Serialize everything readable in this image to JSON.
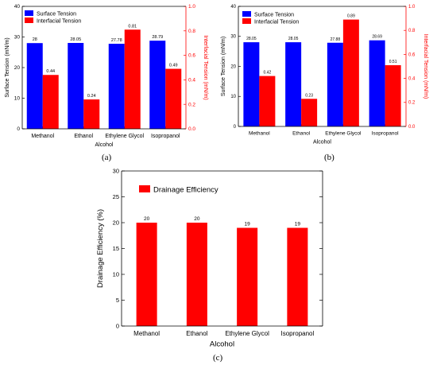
{
  "panels": [
    "(a)",
    "(b)",
    "(c)"
  ],
  "chart_data": [
    {
      "type": "bar",
      "categories": [
        "Methanol",
        "Ethanol",
        "Ethylene Glycol",
        "Isopropanol"
      ],
      "xlabel": "Alcohol",
      "ylabel": "Surface Tension (mN/m)",
      "y2label": "Interfacial Tension (mN/m)",
      "ylim": [
        0,
        40
      ],
      "y2lim": [
        0,
        1.0
      ],
      "yticks": [
        "0",
        "10",
        "20",
        "30",
        "40"
      ],
      "y2ticks": [
        "0.0",
        "0.2",
        "0.4",
        "0.6",
        "0.8",
        "1.0"
      ],
      "legend_position": "top-left",
      "series": [
        {
          "name": "Surface Tension",
          "axis": "left",
          "color": "#0000ff",
          "values": [
            28,
            28.05,
            27.78,
            28.79
          ],
          "labels": [
            "28",
            "28.05",
            "27.78",
            "28.79"
          ]
        },
        {
          "name": "Interfacial Tension",
          "axis": "right",
          "color": "#ff0000",
          "values": [
            0.44,
            0.24,
            0.81,
            0.49
          ],
          "labels": [
            "0.44",
            "0.24",
            "0.81",
            "0.49"
          ]
        }
      ]
    },
    {
      "type": "bar",
      "categories": [
        "Methanol",
        "Ethanol",
        "Ethylene Glycol",
        "Isopropanol"
      ],
      "xlabel": "Alcohol",
      "ylabel": "Surface Tension (mN/m)",
      "y2label": "Interfacial Tension (mN/m)",
      "ylim": [
        0,
        40
      ],
      "y2lim": [
        0,
        1.0
      ],
      "yticks": [
        "0",
        "10",
        "20",
        "30",
        "40"
      ],
      "y2ticks": [
        "0.0",
        "0.2",
        "0.4",
        "0.6",
        "0.8",
        "1.0"
      ],
      "legend_position": "top-left",
      "series": [
        {
          "name": "Surface Tension",
          "axis": "left",
          "color": "#0000ff",
          "values": [
            28.05,
            28.05,
            27.88,
            28.69
          ],
          "labels": [
            "28.05",
            "28.05",
            "27.88",
            "28.69"
          ]
        },
        {
          "name": "Interfacial Tension",
          "axis": "right",
          "color": "#ff0000",
          "values": [
            0.42,
            0.23,
            0.89,
            0.51
          ],
          "labels": [
            "0.42",
            "0.23",
            "0.89",
            "0.51"
          ]
        }
      ]
    },
    {
      "type": "bar",
      "categories": [
        "Methanol",
        "Ethanol",
        "Ethylene Glycol",
        "Isopropanol"
      ],
      "xlabel": "Alcohol",
      "ylabel": "Drainage Efficiency (%)",
      "ylim": [
        0,
        30
      ],
      "yticks": [
        "0",
        "5",
        "10",
        "15",
        "20",
        "25",
        "30"
      ],
      "legend_position": "top-left",
      "series": [
        {
          "name": "Drainage Efficiency",
          "axis": "left",
          "color": "#ff0000",
          "values": [
            20,
            20,
            19,
            19
          ],
          "labels": [
            "20",
            "20",
            "19",
            "19"
          ]
        }
      ]
    }
  ]
}
